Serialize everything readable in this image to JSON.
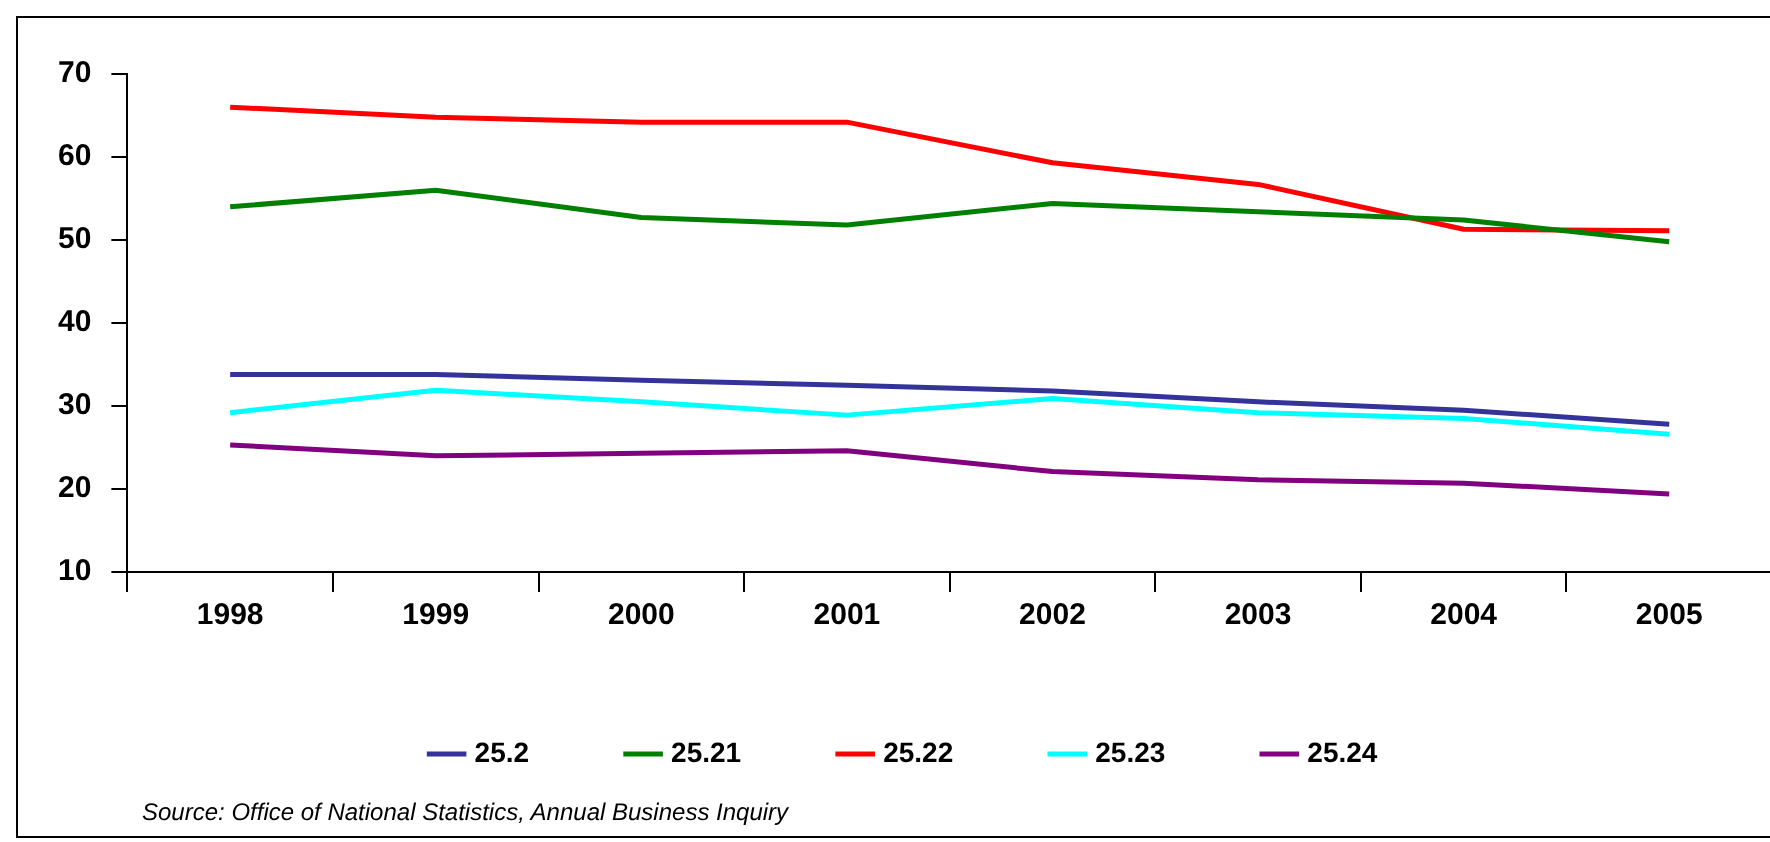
{
  "chart_data": {
    "type": "line",
    "categories": [
      "1998",
      "1999",
      "2000",
      "2001",
      "2002",
      "2003",
      "2004",
      "2005"
    ],
    "series": [
      {
        "name": "25.2",
        "color": "#333399",
        "values": [
          33.8,
          33.8,
          33.1,
          32.5,
          31.8,
          30.5,
          29.5,
          27.8
        ]
      },
      {
        "name": "25.21",
        "color": "#008000",
        "values": [
          54,
          56,
          52.7,
          51.8,
          54.4,
          53.4,
          52.4,
          49.8
        ]
      },
      {
        "name": "25.22",
        "color": "#ff0000",
        "values": [
          66,
          64.8,
          64.2,
          64.2,
          59.3,
          56.7,
          51.3,
          51.1
        ]
      },
      {
        "name": "25.23",
        "color": "#00ffff",
        "values": [
          29.2,
          31.9,
          30.5,
          28.9,
          30.9,
          29.2,
          28.5,
          26.6
        ]
      },
      {
        "name": "25.24",
        "color": "#800080",
        "values": [
          25.3,
          24,
          24.3,
          24.6,
          22.1,
          21.1,
          20.7,
          19.4
        ]
      }
    ],
    "ylim": [
      10,
      70
    ],
    "yticks": [
      10,
      20,
      30,
      40,
      50,
      60,
      70
    ],
    "grid": false,
    "legend": "bottom",
    "marker": "none",
    "line_style": "solid",
    "annotations": [
      "Source: Office of National Statistics, Annual Business Inquiry"
    ]
  }
}
